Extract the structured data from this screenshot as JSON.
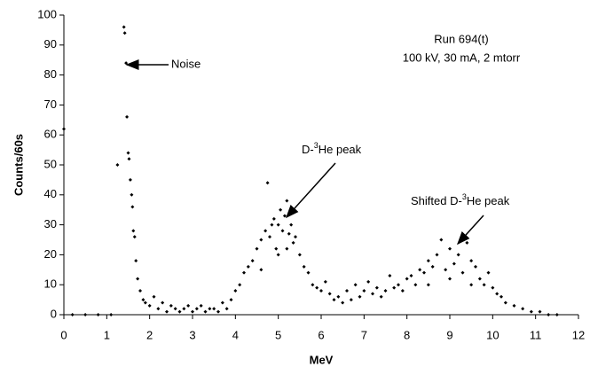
{
  "chart_data": {
    "type": "scatter",
    "x_label": "MeV",
    "y_label": "Counts/60s",
    "xlim": [
      0,
      12
    ],
    "ylim": [
      0,
      100
    ],
    "xticks": [
      0,
      1,
      2,
      3,
      4,
      5,
      6,
      7,
      8,
      9,
      10,
      11,
      12
    ],
    "yticks": [
      0,
      10,
      20,
      30,
      40,
      50,
      60,
      70,
      80,
      90,
      100
    ],
    "color": "#000000",
    "x": [
      0,
      0.2,
      0.5,
      0.8,
      1.1,
      1.25,
      1.4,
      1.42,
      1.45,
      1.47,
      1.5,
      1.52,
      1.55,
      1.58,
      1.6,
      1.62,
      1.65,
      1.68,
      1.72,
      1.78,
      1.85,
      1.9,
      2.0,
      2.1,
      2.2,
      2.3,
      2.4,
      2.5,
      2.6,
      2.7,
      2.8,
      2.9,
      3.0,
      3.1,
      3.2,
      3.3,
      3.4,
      3.5,
      3.6,
      3.7,
      3.8,
      3.9,
      4.0,
      4.1,
      4.2,
      4.3,
      4.4,
      4.5,
      4.6,
      4.6,
      4.7,
      4.75,
      4.8,
      4.85,
      4.9,
      4.95,
      5.0,
      5.0,
      5.05,
      5.1,
      5.15,
      5.2,
      5.2,
      5.25,
      5.3,
      5.35,
      5.4,
      5.5,
      5.6,
      5.7,
      5.8,
      5.9,
      6.0,
      6.1,
      6.2,
      6.3,
      6.4,
      6.5,
      6.6,
      6.7,
      6.8,
      6.9,
      7.0,
      7.1,
      7.2,
      7.3,
      7.4,
      7.5,
      7.6,
      7.7,
      7.8,
      7.9,
      8.0,
      8.1,
      8.2,
      8.3,
      8.4,
      8.5,
      8.5,
      8.6,
      8.7,
      8.8,
      8.9,
      9.0,
      9.0,
      9.1,
      9.2,
      9.3,
      9.4,
      9.5,
      9.5,
      9.6,
      9.7,
      9.8,
      9.9,
      10.0,
      10.1,
      10.2,
      10.3,
      10.5,
      10.7,
      10.9,
      11.1,
      11.3,
      11.5
    ],
    "values": [
      62,
      0,
      0,
      0,
      0,
      50,
      96,
      94,
      84,
      66,
      54,
      52,
      45,
      40,
      36,
      28,
      26,
      18,
      12,
      8,
      5,
      4,
      3,
      6,
      2,
      4,
      1,
      3,
      2,
      1,
      2,
      3,
      1,
      2,
      3,
      1,
      2,
      2,
      1,
      4,
      2,
      5,
      8,
      10,
      14,
      16,
      18,
      22,
      25,
      15,
      28,
      44,
      26,
      30,
      32,
      22,
      30,
      20,
      35,
      28,
      33,
      38,
      22,
      27,
      30,
      24,
      26,
      20,
      16,
      14,
      10,
      9,
      8,
      11,
      7,
      5,
      6,
      4,
      8,
      5,
      10,
      6,
      8,
      11,
      7,
      9,
      6,
      8,
      13,
      9,
      10,
      8,
      12,
      13,
      10,
      15,
      14,
      18,
      10,
      16,
      20,
      25,
      15,
      22,
      12,
      17,
      20,
      14,
      24,
      18,
      10,
      16,
      12,
      10,
      14,
      9,
      7,
      6,
      4,
      3,
      2,
      1,
      1,
      0,
      0
    ],
    "annotations": {
      "run": "Run 694(t)",
      "conditions": "100 kV, 30 mA, 2 mtorr",
      "noise": "Noise",
      "peak": {
        "pre": "D-",
        "sup": "3",
        "post": "He peak"
      },
      "shifted": {
        "pre": "Shifted D-",
        "sup": "3",
        "post": "He peak"
      }
    }
  }
}
